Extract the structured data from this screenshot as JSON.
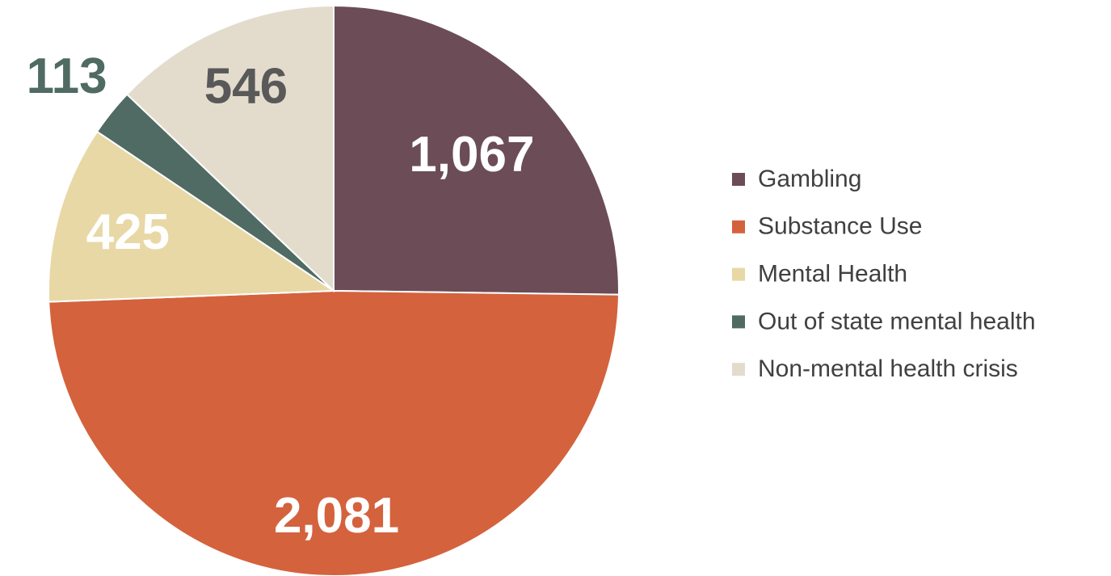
{
  "chart_data": {
    "type": "pie",
    "categories": [
      "Gambling",
      "Substance Use",
      "Mental Health",
      "Out of state mental health",
      "Non-mental health crisis"
    ],
    "values": [
      1067,
      2081,
      425,
      113,
      546
    ],
    "value_labels": [
      "1,067",
      "2,081",
      "425",
      "113",
      "546"
    ],
    "colors": [
      "#6b4c57",
      "#d4623d",
      "#e8d8a6",
      "#4f6b63",
      "#e3dccd"
    ],
    "legend": "right"
  }
}
